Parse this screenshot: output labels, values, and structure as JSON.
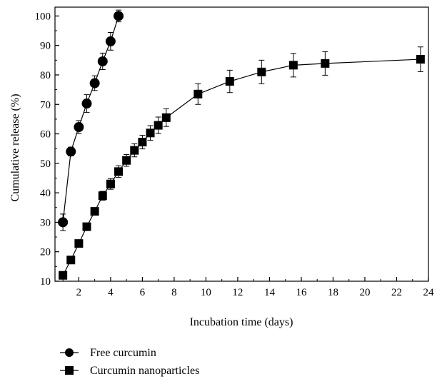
{
  "chart_data": {
    "type": "line",
    "title": "",
    "xlabel": "Incubation time (days)",
    "ylabel": "Cumulative release (%)",
    "xlim": [
      0.5,
      24
    ],
    "ylim": [
      10,
      103
    ],
    "xticks": [
      2,
      4,
      6,
      8,
      10,
      12,
      14,
      16,
      18,
      20,
      22,
      24
    ],
    "yticks": [
      10,
      20,
      30,
      40,
      50,
      60,
      70,
      80,
      90,
      100
    ],
    "grid": false,
    "legend_position": "bottom-left",
    "series": [
      {
        "name": "Free curcumin",
        "marker": "circle",
        "color": "#000000",
        "x": [
          1,
          1.5,
          2,
          2.5,
          3,
          3.5,
          4,
          4.5
        ],
        "y": [
          30,
          54,
          62.3,
          70.3,
          77.2,
          84.6,
          91.4,
          100
        ],
        "err": [
          2.8,
          1.5,
          2.2,
          3.0,
          2.5,
          2.8,
          3.0,
          2.0
        ]
      },
      {
        "name": "Curcumin nanoparticles",
        "marker": "square",
        "color": "#000000",
        "x": [
          1,
          1.5,
          2,
          2.5,
          3,
          3.5,
          4,
          4.5,
          5,
          5.5,
          6,
          6.5,
          7,
          7.5,
          9.5,
          11.5,
          13.5,
          15.5,
          17.5,
          23.5
        ],
        "y": [
          12,
          17.2,
          22.8,
          28.5,
          33.7,
          39,
          43,
          47.2,
          51,
          54.4,
          57.2,
          60.3,
          62.9,
          65.5,
          73.5,
          77.8,
          81,
          83.3,
          83.9,
          85.3
        ],
        "err": [
          0.8,
          0.9,
          1.0,
          1.1,
          1.2,
          1.5,
          1.8,
          2.0,
          2.0,
          2.2,
          2.3,
          2.5,
          2.8,
          3.0,
          3.5,
          3.8,
          4.0,
          4.0,
          4.0,
          4.2
        ]
      }
    ]
  }
}
